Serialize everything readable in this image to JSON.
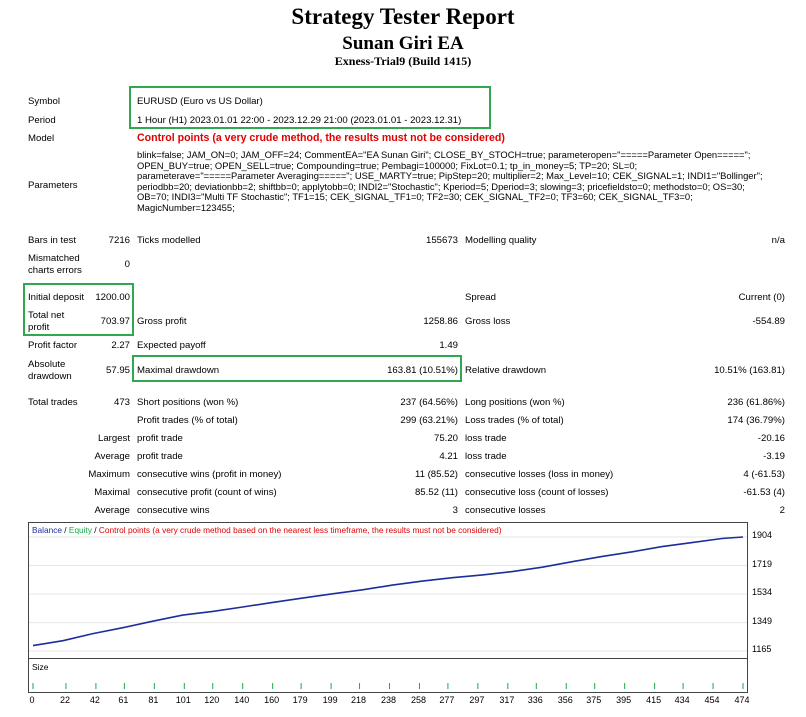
{
  "header": {
    "title": "Strategy Tester Report",
    "subtitle": "Sunan Giri EA",
    "build": "Exness-Trial9 (Build 1415)"
  },
  "summary": {
    "symbol_label": "Symbol",
    "symbol_value": "EURUSD (Euro vs US Dollar)",
    "period_label": "Period",
    "period_value": "1 Hour (H1) 2023.01.01 22:00 - 2023.12.29 21:00 (2023.01.01 - 2023.12.31)",
    "model_label": "Model",
    "model_value": "Control points (a very crude method, the results must not be considered)",
    "parameters_label": "Parameters",
    "parameters_value": "blink=false; JAM_ON=0; JAM_OFF=24; CommentEA=\"EA Sunan Giri\"; CLOSE_BY_STOCH=true; parameteropen=\"=====Parameter Open=====\"; OPEN_BUY=true; OPEN_SELL=true; Compounding=true; Pembagi=100000; FixLot=0.1; tp_in_money=5; TP=20; SL=0; parameterave=\"=====Parameter Averaging=====\"; USE_MARTY=true; PipStep=20; multiplier=2; Max_Level=10; CEK_SIGNAL=1; INDI1=\"Bollinger\"; periodbb=20; deviationbb=2; shiftbb=0; applytobb=0; INDI2=\"Stochastic\"; Kperiod=5; Dperiod=3; slowing=3; pricefieldsto=0; methodsto=0; OS=30; OB=70; INDI3=\"Multi TF Stochastic\"; TF1=15; CEK_SIGNAL_TF1=0; TF2=30; CEK_SIGNAL_TF2=0; TF3=60; CEK_SIGNAL_TF3=0; MagicNumber=123455;"
  },
  "stats": {
    "bars_label": "Bars in test",
    "bars_value": "7216",
    "ticks_label": "Ticks modelled",
    "ticks_value": "155673",
    "quality_label": "Modelling quality",
    "quality_value": "n/a",
    "mismatched_label_1": "Mismatched",
    "mismatched_label_2": "charts errors",
    "mismatched_value": "0",
    "initial_deposit_label": "Initial deposit",
    "initial_deposit_value": "1200.00",
    "spread_label": "Spread",
    "spread_value": "Current (0)",
    "net_profit_label_1": "Total net",
    "net_profit_label_2": "profit",
    "net_profit_value": "703.97",
    "gross_profit_label": "Gross profit",
    "gross_profit_value": "1258.86",
    "gross_loss_label": "Gross loss",
    "gross_loss_value": "-554.89",
    "profit_factor_label": "Profit factor",
    "profit_factor_value": "2.27",
    "expected_payoff_label": "Expected payoff",
    "expected_payoff_value": "1.49",
    "abs_dd_label_1": "Absolute",
    "abs_dd_label_2": "drawdown",
    "abs_dd_value": "57.95",
    "max_dd_label": "Maximal drawdown",
    "max_dd_value": "163.81 (10.51%)",
    "rel_dd_label": "Relative drawdown",
    "rel_dd_value": "10.51% (163.81)",
    "total_trades_label": "Total trades",
    "total_trades_value": "473",
    "short_label": "Short positions (won %)",
    "short_value": "237 (64.56%)",
    "long_label": "Long positions (won %)",
    "long_value": "236 (61.86%)",
    "profit_trades_label": "Profit trades (% of total)",
    "profit_trades_value": "299 (63.21%)",
    "loss_trades_label": "Loss trades (% of total)",
    "loss_trades_value": "174 (36.79%)",
    "largest_label": "Largest",
    "largest_profit_label": "profit trade",
    "largest_profit_value": "75.20",
    "largest_loss_label": "loss trade",
    "largest_loss_value": "-20.16",
    "average_label": "Average",
    "average_profit_label": "profit trade",
    "average_profit_value": "4.21",
    "average_loss_label": "loss trade",
    "average_loss_value": "-3.19",
    "maximum_label": "Maximum",
    "max_cons_wins_label": "consecutive wins (profit in money)",
    "max_cons_wins_value": "11 (85.52)",
    "max_cons_losses_label": "consecutive losses (loss in money)",
    "max_cons_losses_value": "4 (-61.53)",
    "maximal_label": "Maximal",
    "maximal_cons_profit_label": "consecutive profit (count of wins)",
    "maximal_cons_profit_value": "85.52 (11)",
    "maximal_cons_loss_label": "consecutive loss (count of losses)",
    "maximal_cons_loss_value": "-61.53 (4)",
    "average2_label": "Average",
    "avg_cons_wins_label": "consecutive wins",
    "avg_cons_wins_value": "3",
    "avg_cons_losses_label": "consecutive losses",
    "avg_cons_losses_value": "2"
  },
  "chart_legend": {
    "balance": "Balance",
    "sep1": " / ",
    "equity": "Equity",
    "sep2": " / ",
    "control": "Control points (a very crude method based on the nearest less timeframe, the results must not be considered)"
  },
  "size_label": "Size",
  "colors": {
    "balance": "#1d2e9c",
    "equity": "#1aa84a",
    "highlight_box": "#2fa84f",
    "warning": "#e00000",
    "size_bars": "#1aa84a"
  },
  "chart_data": {
    "type": "line",
    "series": [
      {
        "name": "Balance",
        "x": [
          0,
          20,
          40,
          60,
          80,
          100,
          120,
          140,
          160,
          180,
          200,
          220,
          240,
          260,
          280,
          300,
          320,
          340,
          360,
          380,
          400,
          420,
          440,
          460,
          474
        ],
        "y": [
          1200,
          1232,
          1278,
          1316,
          1358,
          1398,
          1422,
          1450,
          1480,
          1508,
          1536,
          1562,
          1592,
          1618,
          1640,
          1658,
          1680,
          1708,
          1744,
          1778,
          1808,
          1842,
          1868,
          1894,
          1904
        ]
      }
    ],
    "y_ticks": [
      "1904",
      "1719",
      "1534",
      "1349",
      "1165"
    ],
    "ylim": [
      1165,
      1904
    ],
    "x_ticks": [
      "0",
      "22",
      "42",
      "61",
      "81",
      "101",
      "120",
      "140",
      "160",
      "179",
      "199",
      "218",
      "238",
      "258",
      "277",
      "297",
      "317",
      "336",
      "356",
      "375",
      "395",
      "415",
      "434",
      "454",
      "474"
    ],
    "xlim": [
      0,
      474
    ]
  }
}
